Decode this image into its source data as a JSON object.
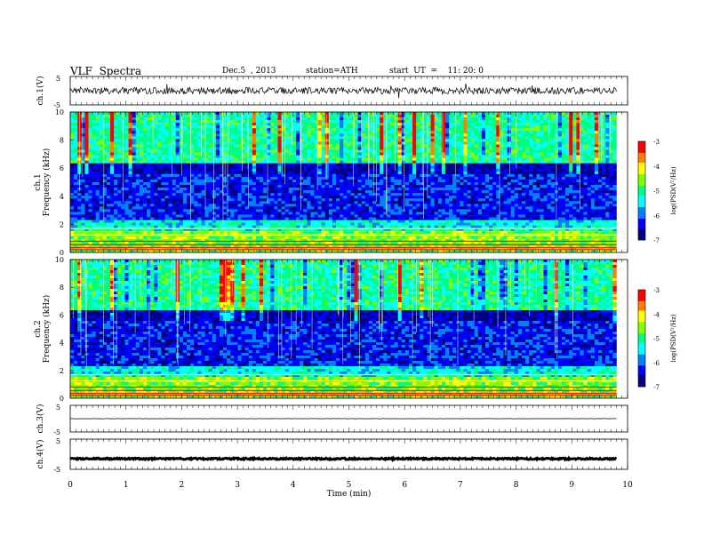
{
  "header": {
    "title": "VLF  Spectra",
    "date": "Dec.5  , 2013",
    "station": "station=ATH",
    "start": "start  UT  =    11: 20: 0"
  },
  "chart_data": {
    "type": "heatmap",
    "x": {
      "label": "Time  (min)",
      "range": [
        0,
        10
      ],
      "ticks": [
        "0",
        "1",
        "2",
        "3",
        "4",
        "5",
        "6",
        "7",
        "8",
        "9",
        "10"
      ],
      "data_end": 9.8
    },
    "panels": [
      {
        "id": "ch1_wave",
        "kind": "waveform",
        "ylabel": "ch.1(V)",
        "ylim": [
          -5,
          5
        ],
        "yticks": [
          "5",
          "-5"
        ],
        "amplitude": 1.2,
        "spikes": 2.2
      },
      {
        "id": "ch1_spec",
        "kind": "spectrogram",
        "ylabel": "Frequency  (kHz)",
        "chlabel": "ch.1",
        "ylim": [
          0,
          10
        ],
        "yticks": [
          "0",
          "2",
          "4",
          "6",
          "8",
          "10"
        ],
        "seed": 7
      },
      {
        "id": "ch2_spec",
        "kind": "spectrogram",
        "ylabel": "Frequency  (kHz)",
        "chlabel": "ch.2",
        "ylim": [
          0,
          10
        ],
        "yticks": [
          "0",
          "2",
          "4",
          "6",
          "8",
          "10"
        ],
        "seed": 13
      },
      {
        "id": "ch3_wave",
        "kind": "waveform",
        "ylabel": "ch.3(V)",
        "ylim": [
          -5,
          5
        ],
        "yticks": [
          "5",
          "-5"
        ],
        "amplitude": 0.05,
        "spikes": 0
      },
      {
        "id": "ch4_wave",
        "kind": "waveform",
        "ylabel": "ch.4(V)",
        "ylim": [
          -5,
          5
        ],
        "yticks": [
          "5",
          "-5"
        ],
        "amplitude": 0.25,
        "spikes": 0,
        "offset": -1.5,
        "thick": true
      }
    ],
    "colorbar": {
      "label": "log(PSD(V²/Hz)",
      "range": [
        -7,
        -3
      ],
      "ticks": [
        "-3",
        "-4",
        "-5",
        "-6",
        "-7"
      ]
    },
    "colormap": [
      "#000080",
      "#0000ff",
      "#0080ff",
      "#00ffff",
      "#00ff80",
      "#80ff00",
      "#ffff00",
      "#ff8000",
      "#ff0000",
      "#ffffff"
    ],
    "strong_lines_khz": [
      0.2,
      0.35,
      0.55,
      0.8,
      1.25,
      1.7
    ],
    "band_structure": [
      {
        "from": 0,
        "to": 1.5,
        "level": -4.6
      },
      {
        "from": 1.5,
        "to": 2.4,
        "level": -5.4
      },
      {
        "from": 2.4,
        "to": 5.6,
        "level": -6.3
      },
      {
        "from": 5.6,
        "to": 6.4,
        "level": -6.6
      },
      {
        "from": 6.4,
        "to": 10,
        "level": -5.1
      }
    ]
  }
}
